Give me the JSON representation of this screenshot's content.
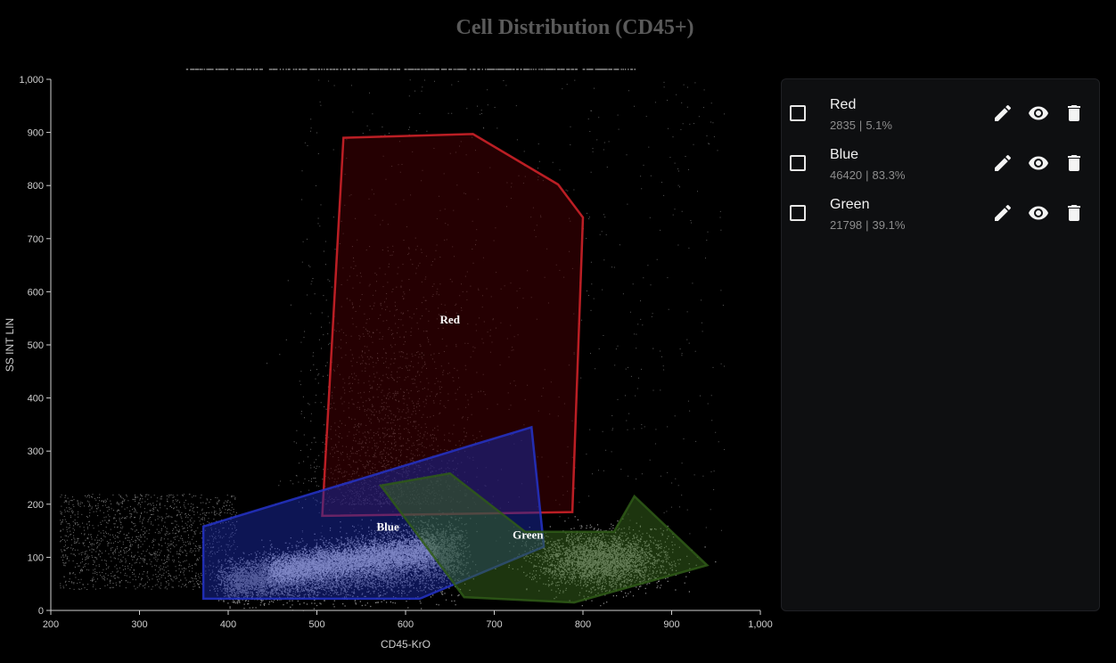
{
  "chart_data": {
    "type": "scatter",
    "title": "Cell Distribution (CD45+)",
    "xlabel": "CD45-KrO",
    "ylabel": "SS INT LIN",
    "xlim": [
      200,
      1000
    ],
    "ylim": [
      0,
      1000
    ],
    "x_ticks": [
      "200",
      "300",
      "400",
      "500",
      "600",
      "700",
      "800",
      "900",
      "1,000"
    ],
    "y_ticks": [
      "0",
      "100",
      "200",
      "300",
      "400",
      "500",
      "600",
      "700",
      "800",
      "900",
      "1,000"
    ],
    "grid": false,
    "point_color": "#ffffff",
    "gates": [
      {
        "name": "Red",
        "label": "Red",
        "color": "#d8232a",
        "fill": "#4a0004",
        "label_pos": [
          650,
          540
        ],
        "vertices": [
          [
            506,
            178
          ],
          [
            530,
            890
          ],
          [
            676,
            897
          ],
          [
            772,
            802
          ],
          [
            800,
            740
          ],
          [
            788,
            185
          ]
        ]
      },
      {
        "name": "Blue",
        "label": "Blue",
        "color": "#2433c8",
        "fill": "#1a2aa8",
        "label_pos": [
          580,
          150
        ],
        "vertices": [
          [
            372,
            158
          ],
          [
            742,
            345
          ],
          [
            756,
            120
          ],
          [
            616,
            22
          ],
          [
            372,
            22
          ]
        ]
      },
      {
        "name": "Green",
        "label": "Green",
        "color": "#2f5a18",
        "fill": "#3a6a1e",
        "label_pos": [
          738,
          135
        ],
        "vertices": [
          [
            572,
            235
          ],
          [
            650,
            258
          ],
          [
            735,
            148
          ],
          [
            835,
            148
          ],
          [
            858,
            215
          ],
          [
            940,
            85
          ],
          [
            790,
            15
          ],
          [
            666,
            25
          ]
        ]
      }
    ]
  },
  "panel": {
    "gates": [
      {
        "name": "Red",
        "count": "2835",
        "separator": "|",
        "percent": "5.1%"
      },
      {
        "name": "Blue",
        "count": "46420",
        "separator": "|",
        "percent": "83.3%"
      },
      {
        "name": "Green",
        "count": "21798",
        "separator": "|",
        "percent": "39.1%"
      }
    ],
    "icons": {
      "edit": "pencil-icon",
      "view": "eye-icon",
      "delete": "trash-icon"
    }
  }
}
